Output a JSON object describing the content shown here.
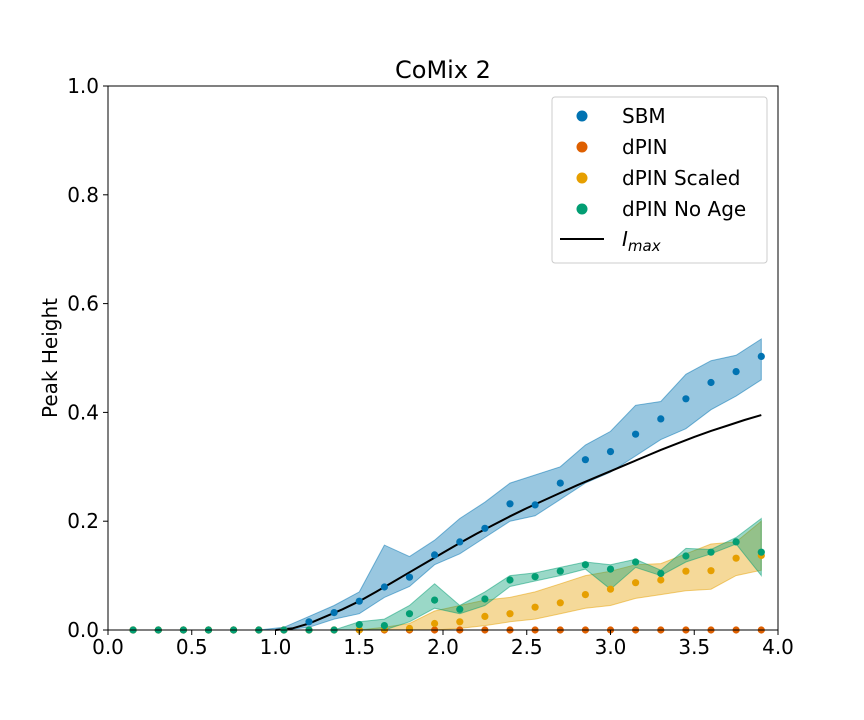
{
  "chart_data": {
    "type": "scatter",
    "title": "CoMix 2",
    "xlabel": "",
    "ylabel": "Peak Height",
    "xlim": [
      0.0,
      4.0
    ],
    "ylim": [
      0.0,
      1.0
    ],
    "x_ticks": [
      "0.0",
      "0.5",
      "1.0",
      "1.5",
      "2.0",
      "2.5",
      "3.0",
      "3.5",
      "4.0"
    ],
    "y_ticks": [
      "0.0",
      "0.2",
      "0.4",
      "0.6",
      "0.8",
      "1.0"
    ],
    "grid": false,
    "legend_position": "top-right",
    "x": [
      0.15,
      0.3,
      0.45,
      0.6,
      0.75,
      0.9,
      1.05,
      1.2,
      1.35,
      1.5,
      1.65,
      1.8,
      1.95,
      2.1,
      2.25,
      2.4,
      2.55,
      2.7,
      2.85,
      3.0,
      3.15,
      3.3,
      3.45,
      3.6,
      3.75,
      3.9
    ],
    "series": [
      {
        "name": "SBM",
        "color": "#0173b2",
        "values": [
          0.0,
          0.0,
          0.0,
          0.0,
          0.0,
          0.0,
          0.0,
          0.015,
          0.032,
          0.053,
          0.079,
          0.097,
          0.138,
          0.162,
          0.187,
          0.232,
          0.23,
          0.27,
          0.313,
          0.328,
          0.36,
          0.388,
          0.425,
          0.455,
          0.475,
          0.503
        ],
        "band_low": [
          0.0,
          0.0,
          0.0,
          0.0,
          0.0,
          0.0,
          0.0,
          0.005,
          0.02,
          0.03,
          0.06,
          0.08,
          0.12,
          0.14,
          0.17,
          0.2,
          0.21,
          0.24,
          0.27,
          0.29,
          0.32,
          0.35,
          0.37,
          0.405,
          0.43,
          0.46
        ],
        "band_high": [
          0.0,
          0.0,
          0.0,
          0.0,
          0.0,
          0.0,
          0.005,
          0.025,
          0.045,
          0.07,
          0.156,
          0.135,
          0.165,
          0.205,
          0.235,
          0.27,
          0.285,
          0.3,
          0.34,
          0.365,
          0.413,
          0.42,
          0.47,
          0.495,
          0.505,
          0.535
        ]
      },
      {
        "name": "dPIN",
        "color": "#de5f00",
        "values": [
          0.0,
          0.0,
          0.0,
          0.0,
          0.0,
          0.0,
          0.0,
          0.0,
          0.0,
          0.0,
          0.0,
          0.0,
          0.0,
          0.0,
          0.0,
          0.0,
          0.0,
          0.0,
          0.0,
          0.0,
          0.0,
          0.0,
          0.0,
          0.0,
          0.0,
          0.0
        ]
      },
      {
        "name": "dPIN Scaled",
        "color": "#e69f00",
        "values": [
          0.0,
          0.0,
          0.0,
          0.0,
          0.0,
          0.0,
          0.0,
          0.0,
          0.0,
          0.0,
          0.002,
          0.003,
          0.012,
          0.015,
          0.025,
          0.03,
          0.042,
          0.05,
          0.065,
          0.075,
          0.087,
          0.092,
          0.108,
          0.109,
          0.132,
          0.137
        ],
        "band_low": [
          0.0,
          0.0,
          0.0,
          0.0,
          0.0,
          0.0,
          0.0,
          0.0,
          0.0,
          0.0,
          0.0,
          0.0,
          0.0,
          0.003,
          0.008,
          0.015,
          0.02,
          0.03,
          0.04,
          0.045,
          0.058,
          0.065,
          0.072,
          0.075,
          0.1,
          0.11
        ],
        "band_high": [
          0.0,
          0.0,
          0.0,
          0.0,
          0.0,
          0.0,
          0.0,
          0.0,
          0.0,
          0.0,
          0.005,
          0.012,
          0.035,
          0.045,
          0.055,
          0.06,
          0.07,
          0.085,
          0.1,
          0.108,
          0.12,
          0.122,
          0.14,
          0.158,
          0.162,
          0.2
        ]
      },
      {
        "name": "dPIN No Age",
        "color": "#029e73",
        "values": [
          0.0,
          0.0,
          0.0,
          0.0,
          0.0,
          0.0,
          0.0,
          0.0,
          0.0,
          0.01,
          0.008,
          0.03,
          0.055,
          0.038,
          0.057,
          0.092,
          0.098,
          0.108,
          0.12,
          0.112,
          0.125,
          0.104,
          0.136,
          0.143,
          0.162,
          0.143
        ],
        "band_low": [
          0.0,
          0.0,
          0.0,
          0.0,
          0.0,
          0.0,
          0.0,
          0.0,
          0.0,
          0.0,
          0.0,
          0.015,
          0.04,
          0.03,
          0.045,
          0.08,
          0.09,
          0.1,
          0.112,
          0.075,
          0.115,
          0.1,
          0.125,
          0.14,
          0.158,
          0.1
        ],
        "band_high": [
          0.0,
          0.0,
          0.0,
          0.0,
          0.0,
          0.0,
          0.0,
          0.0,
          0.0,
          0.015,
          0.02,
          0.045,
          0.085,
          0.045,
          0.07,
          0.1,
          0.105,
          0.115,
          0.125,
          0.12,
          0.13,
          0.11,
          0.15,
          0.148,
          0.17,
          0.205
        ]
      }
    ],
    "line_series": {
      "name": "I_max",
      "legend_main": "I",
      "legend_sub": "max",
      "color": "#000000",
      "x": [
        1.0,
        1.1,
        1.2,
        1.3,
        1.4,
        1.5,
        1.6,
        1.7,
        1.8,
        1.9,
        2.0,
        2.1,
        2.2,
        2.3,
        2.4,
        2.5,
        2.6,
        2.7,
        2.8,
        2.9,
        3.0,
        3.1,
        3.2,
        3.3,
        3.4,
        3.5,
        3.6,
        3.7,
        3.8,
        3.9
      ],
      "y": [
        0.0,
        0.003,
        0.012,
        0.025,
        0.038,
        0.053,
        0.07,
        0.088,
        0.106,
        0.124,
        0.142,
        0.16,
        0.177,
        0.193,
        0.209,
        0.224,
        0.238,
        0.252,
        0.266,
        0.279,
        0.292,
        0.305,
        0.318,
        0.331,
        0.343,
        0.355,
        0.366,
        0.376,
        0.386,
        0.395
      ]
    }
  }
}
